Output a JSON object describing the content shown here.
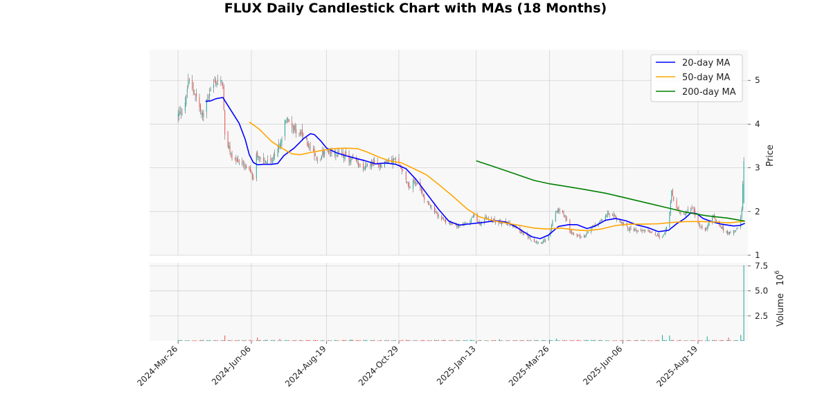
{
  "chart_data": {
    "type": "candlestick",
    "title": "FLUX Daily Candlestick Chart with MAs (18 Months)",
    "ylabel_price": "Price",
    "ylabel_volume": "Volume",
    "volume_exponent": "6",
    "price_ylim": [
      1.0,
      5.7
    ],
    "price_yticks": [
      1,
      2,
      3,
      4,
      5
    ],
    "volume_ylim": [
      0,
      7.8
    ],
    "volume_yticks": [
      2.5,
      5.0,
      7.5
    ],
    "volume_ytick_labels": [
      "2.5",
      "5.0",
      "7.5"
    ],
    "x_tick_labels": [
      "2024-Mar-26",
      "2024-Jun-06",
      "2024-Aug-19",
      "2024-Oct-29",
      "2025-Jan-13",
      "2025-Mar-26",
      "2025-Jun-06",
      "2025-Aug-19"
    ],
    "x_tick_days": [
      0,
      72,
      146,
      217,
      293,
      365,
      437,
      511
    ],
    "x_range_days": [
      -28,
      560
    ],
    "grid": true,
    "legend_position": "top-right",
    "colors": {
      "up": "#26a69a",
      "down": "#ef5350",
      "ma20": "#0000ff",
      "ma50": "#ffa500",
      "ma200": "#008000",
      "plot_bg": "#f8f8f8",
      "grid": "#d3d3d3"
    },
    "series": [
      {
        "name": "20-day MA",
        "key": "ma20",
        "points": [
          [
            27,
            4.52
          ],
          [
            32,
            4.53
          ],
          [
            37,
            4.58
          ],
          [
            44,
            4.61
          ],
          [
            51,
            4.35
          ],
          [
            60,
            4.02
          ],
          [
            66,
            3.65
          ],
          [
            70,
            3.3
          ],
          [
            74,
            3.12
          ],
          [
            78,
            3.07
          ],
          [
            84,
            3.08
          ],
          [
            92,
            3.08
          ],
          [
            98,
            3.1
          ],
          [
            104,
            3.28
          ],
          [
            114,
            3.45
          ],
          [
            124,
            3.68
          ],
          [
            130,
            3.78
          ],
          [
            134,
            3.76
          ],
          [
            140,
            3.62
          ],
          [
            146,
            3.45
          ],
          [
            156,
            3.34
          ],
          [
            166,
            3.27
          ],
          [
            174,
            3.22
          ],
          [
            184,
            3.16
          ],
          [
            194,
            3.09
          ],
          [
            204,
            3.11
          ],
          [
            214,
            3.08
          ],
          [
            224,
            2.98
          ],
          [
            234,
            2.73
          ],
          [
            244,
            2.42
          ],
          [
            256,
            2.05
          ],
          [
            266,
            1.78
          ],
          [
            276,
            1.69
          ],
          [
            288,
            1.72
          ],
          [
            300,
            1.75
          ],
          [
            312,
            1.79
          ],
          [
            322,
            1.76
          ],
          [
            332,
            1.65
          ],
          [
            340,
            1.53
          ],
          [
            348,
            1.42
          ],
          [
            356,
            1.38
          ],
          [
            364,
            1.46
          ],
          [
            374,
            1.66
          ],
          [
            384,
            1.7
          ],
          [
            392,
            1.7
          ],
          [
            402,
            1.61
          ],
          [
            410,
            1.67
          ],
          [
            420,
            1.8
          ],
          [
            430,
            1.84
          ],
          [
            440,
            1.79
          ],
          [
            450,
            1.7
          ],
          [
            462,
            1.63
          ],
          [
            472,
            1.54
          ],
          [
            482,
            1.57
          ],
          [
            490,
            1.72
          ],
          [
            498,
            1.84
          ],
          [
            504,
            1.97
          ],
          [
            510,
            1.95
          ],
          [
            516,
            1.84
          ],
          [
            524,
            1.77
          ],
          [
            534,
            1.71
          ],
          [
            546,
            1.67
          ],
          [
            552,
            1.68
          ],
          [
            557,
            1.73
          ]
        ]
      },
      {
        "name": "50-day MA",
        "key": "ma50",
        "points": [
          [
            70,
            4.05
          ],
          [
            80,
            3.88
          ],
          [
            92,
            3.6
          ],
          [
            102,
            3.45
          ],
          [
            112,
            3.32
          ],
          [
            120,
            3.3
          ],
          [
            130,
            3.35
          ],
          [
            142,
            3.4
          ],
          [
            154,
            3.44
          ],
          [
            164,
            3.45
          ],
          [
            176,
            3.44
          ],
          [
            186,
            3.36
          ],
          [
            198,
            3.24
          ],
          [
            208,
            3.16
          ],
          [
            220,
            3.11
          ],
          [
            230,
            3.0
          ],
          [
            244,
            2.84
          ],
          [
            256,
            2.62
          ],
          [
            270,
            2.35
          ],
          [
            284,
            2.06
          ],
          [
            296,
            1.88
          ],
          [
            310,
            1.79
          ],
          [
            324,
            1.73
          ],
          [
            336,
            1.68
          ],
          [
            350,
            1.62
          ],
          [
            362,
            1.6
          ],
          [
            376,
            1.62
          ],
          [
            390,
            1.58
          ],
          [
            402,
            1.56
          ],
          [
            416,
            1.6
          ],
          [
            430,
            1.68
          ],
          [
            444,
            1.71
          ],
          [
            458,
            1.71
          ],
          [
            472,
            1.72
          ],
          [
            486,
            1.75
          ],
          [
            500,
            1.77
          ],
          [
            514,
            1.77
          ],
          [
            528,
            1.76
          ],
          [
            542,
            1.74
          ],
          [
            557,
            1.78
          ]
        ]
      },
      {
        "name": "200-day MA",
        "key": "ma200",
        "points": [
          [
            293,
            3.16
          ],
          [
            310,
            3.03
          ],
          [
            330,
            2.87
          ],
          [
            350,
            2.71
          ],
          [
            364,
            2.64
          ],
          [
            380,
            2.58
          ],
          [
            398,
            2.51
          ],
          [
            420,
            2.42
          ],
          [
            440,
            2.31
          ],
          [
            460,
            2.2
          ],
          [
            480,
            2.09
          ],
          [
            500,
            1.98
          ],
          [
            520,
            1.9
          ],
          [
            540,
            1.85
          ],
          [
            557,
            1.78
          ]
        ]
      }
    ],
    "close_anchors": [
      [
        0,
        4.2
      ],
      [
        5,
        4.35
      ],
      [
        8,
        4.6
      ],
      [
        10,
        5.02
      ],
      [
        13,
        4.8
      ],
      [
        17,
        4.7
      ],
      [
        20,
        4.45
      ],
      [
        24,
        4.15
      ],
      [
        28,
        4.55
      ],
      [
        33,
        4.85
      ],
      [
        37,
        4.97
      ],
      [
        41,
        4.98
      ],
      [
        44,
        4.9
      ],
      [
        46,
        3.7
      ],
      [
        49,
        3.5
      ],
      [
        53,
        3.25
      ],
      [
        58,
        3.15
      ],
      [
        64,
        3.05
      ],
      [
        70,
        2.92
      ],
      [
        74,
        2.75
      ],
      [
        76,
        3.4
      ],
      [
        80,
        3.2
      ],
      [
        86,
        3.15
      ],
      [
        92,
        3.12
      ],
      [
        97,
        3.4
      ],
      [
        101,
        3.6
      ],
      [
        105,
        4.1
      ],
      [
        110,
        4.05
      ],
      [
        114,
        3.9
      ],
      [
        120,
        3.78
      ],
      [
        124,
        3.7
      ],
      [
        128,
        3.52
      ],
      [
        132,
        3.4
      ],
      [
        137,
        3.2
      ],
      [
        142,
        3.32
      ],
      [
        148,
        3.35
      ],
      [
        155,
        3.28
      ],
      [
        160,
        3.4
      ],
      [
        166,
        3.2
      ],
      [
        172,
        3.18
      ],
      [
        178,
        3.1
      ],
      [
        184,
        3.0
      ],
      [
        190,
        3.1
      ],
      [
        195,
        3.05
      ],
      [
        200,
        3.08
      ],
      [
        206,
        3.15
      ],
      [
        212,
        3.18
      ],
      [
        216,
        3.12
      ],
      [
        222,
        2.9
      ],
      [
        227,
        2.55
      ],
      [
        232,
        2.7
      ],
      [
        237,
        2.55
      ],
      [
        242,
        2.3
      ],
      [
        248,
        2.15
      ],
      [
        252,
        2.0
      ],
      [
        258,
        1.85
      ],
      [
        264,
        1.75
      ],
      [
        272,
        1.68
      ],
      [
        280,
        1.7
      ],
      [
        286,
        1.72
      ],
      [
        291,
        1.95
      ],
      [
        296,
        1.7
      ],
      [
        302,
        1.85
      ],
      [
        308,
        1.8
      ],
      [
        314,
        1.76
      ],
      [
        320,
        1.75
      ],
      [
        326,
        1.7
      ],
      [
        332,
        1.65
      ],
      [
        338,
        1.5
      ],
      [
        344,
        1.42
      ],
      [
        350,
        1.32
      ],
      [
        356,
        1.28
      ],
      [
        361,
        1.35
      ],
      [
        365,
        1.45
      ],
      [
        370,
        1.95
      ],
      [
        374,
        2.05
      ],
      [
        378,
        2.0
      ],
      [
        382,
        1.78
      ],
      [
        386,
        1.5
      ],
      [
        392,
        1.45
      ],
      [
        398,
        1.4
      ],
      [
        403,
        1.55
      ],
      [
        408,
        1.65
      ],
      [
        413,
        1.75
      ],
      [
        418,
        1.85
      ],
      [
        423,
        1.95
      ],
      [
        428,
        1.9
      ],
      [
        434,
        1.78
      ],
      [
        440,
        1.65
      ],
      [
        446,
        1.58
      ],
      [
        452,
        1.55
      ],
      [
        458,
        1.6
      ],
      [
        464,
        1.52
      ],
      [
        470,
        1.45
      ],
      [
        475,
        1.4
      ],
      [
        478,
        1.5
      ],
      [
        482,
        1.75
      ],
      [
        485,
        2.45
      ],
      [
        488,
        2.15
      ],
      [
        492,
        2.0
      ],
      [
        497,
        1.95
      ],
      [
        502,
        2.05
      ],
      [
        506,
        2.05
      ],
      [
        510,
        1.75
      ],
      [
        514,
        1.65
      ],
      [
        518,
        1.55
      ],
      [
        522,
        1.75
      ],
      [
        526,
        1.9
      ],
      [
        531,
        1.7
      ],
      [
        536,
        1.58
      ],
      [
        540,
        1.52
      ],
      [
        544,
        1.5
      ],
      [
        548,
        1.58
      ],
      [
        552,
        1.65
      ],
      [
        554,
        2.05
      ],
      [
        556,
        3.15
      ]
    ],
    "volume_spikes_millions": [
      [
        6,
        0.25
      ],
      [
        46,
        0.55
      ],
      [
        78,
        0.35
      ],
      [
        100,
        0.22
      ],
      [
        170,
        0.15
      ],
      [
        250,
        0.4
      ],
      [
        316,
        0.18
      ],
      [
        372,
        0.25
      ],
      [
        476,
        0.6
      ],
      [
        483,
        0.55
      ],
      [
        520,
        0.45
      ],
      [
        530,
        0.75
      ],
      [
        541,
        0.35
      ],
      [
        553,
        0.6
      ],
      [
        556,
        7.55
      ]
    ],
    "volume_base_millions": 0.07
  }
}
